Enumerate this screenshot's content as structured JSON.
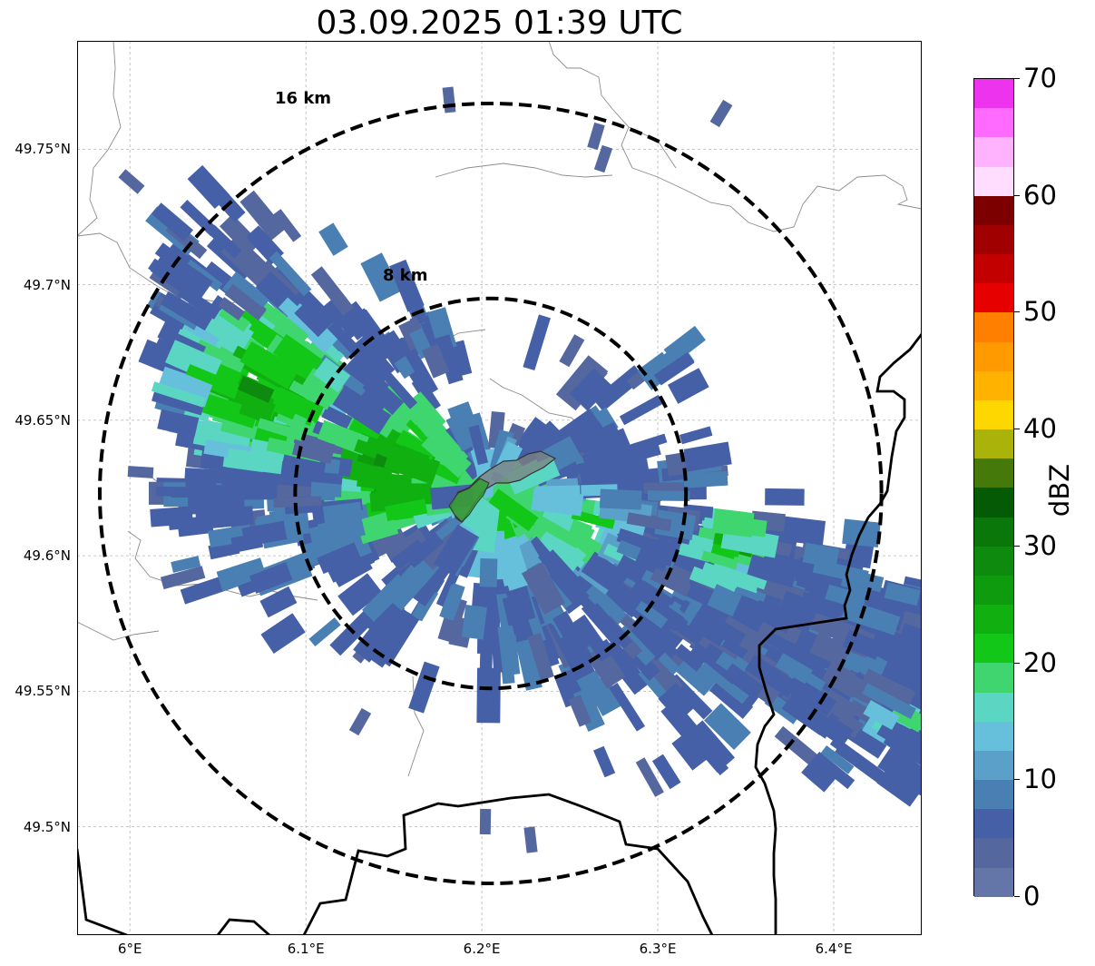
{
  "title": "03.09.2025 01:39 UTC",
  "map": {
    "extent": {
      "lon_min": 5.97,
      "lon_max": 6.45,
      "lat_min": 49.46,
      "lat_max": 49.79
    },
    "center": {
      "lon": 6.205,
      "lat": 49.623
    },
    "lat_ticks": [
      "49.75°N",
      "49.7°N",
      "49.65°N",
      "49.6°N",
      "49.55°N",
      "49.5°N"
    ],
    "lat_tick_values": [
      49.75,
      49.7,
      49.65,
      49.6,
      49.55,
      49.5
    ],
    "lon_ticks": [
      "6°E",
      "6.1°E",
      "6.2°E",
      "6.3°E",
      "6.4°E"
    ],
    "lon_tick_values": [
      6.0,
      6.1,
      6.2,
      6.3,
      6.4
    ],
    "range_rings": [
      {
        "label": "8 km",
        "radius_km": 8
      },
      {
        "label": "16 km",
        "radius_km": 16
      }
    ],
    "colors": {
      "border": "#000000",
      "admin": "#8c8c8c",
      "grid": "#b4b4b4",
      "ring": "#000000",
      "highlight_fill": "#7f7f7f"
    }
  },
  "colorbar": {
    "label": "dBZ",
    "min": 0,
    "max": 70,
    "tick_labels": [
      "0",
      "10",
      "20",
      "30",
      "40",
      "50",
      "60",
      "70"
    ],
    "tick_values": [
      0,
      10,
      20,
      30,
      40,
      50,
      60,
      70
    ],
    "colors": [
      "#6475a8",
      "#55679f",
      "#4560a6",
      "#4a7fb3",
      "#5aa0c9",
      "#66c0dc",
      "#5ad6c3",
      "#3fd670",
      "#13c718",
      "#0fb00f",
      "#0e9c0e",
      "#0e8a0e",
      "#0a770a",
      "#055a05",
      "#457a0a",
      "#aab30a",
      "#ffd700",
      "#ffb300",
      "#ff9a00",
      "#ff7f00",
      "#e60000",
      "#c20000",
      "#a00000",
      "#7d0000",
      "#ffddff",
      "#ffb3ff",
      "#ff6aff",
      "#ee33ee"
    ]
  }
}
